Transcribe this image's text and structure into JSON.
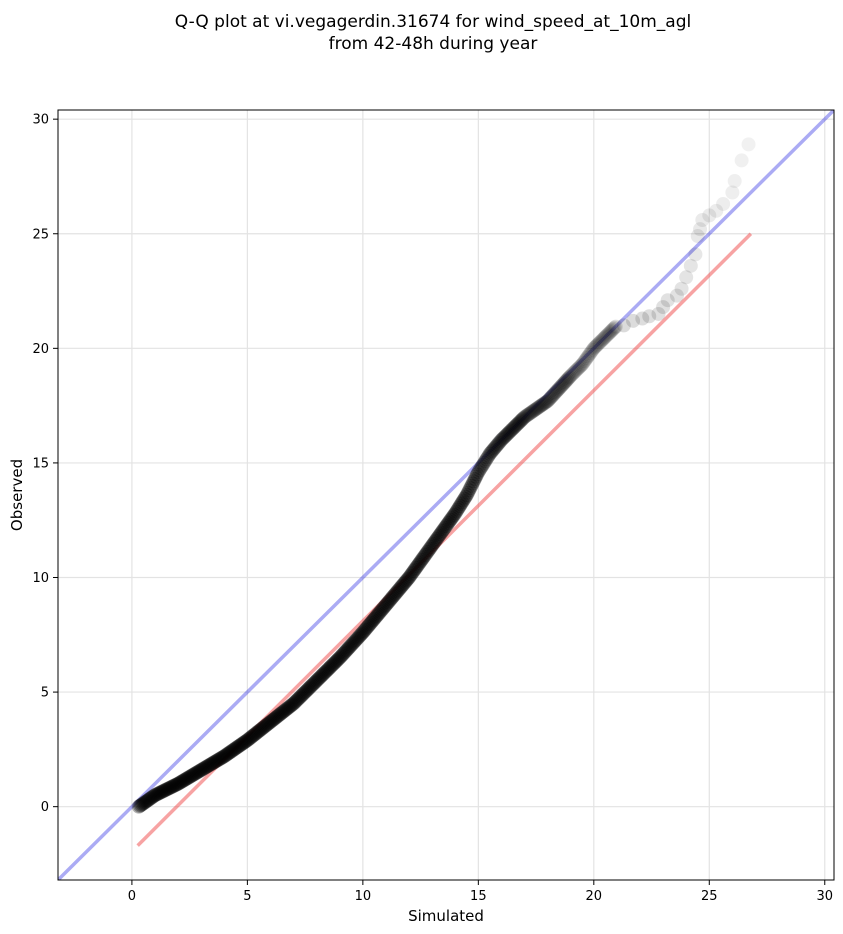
{
  "chart_data": {
    "type": "scatter",
    "title_lines": [
      "Q-Q plot at vi.vegagerdin.31674 for wind_speed_at_10m_agl",
      "from 42-48h during year"
    ],
    "xlabel": "Simulated",
    "ylabel": "Observed",
    "xlim": [
      -3.2,
      30.4
    ],
    "ylim": [
      -3.2,
      30.4
    ],
    "xticks": [
      "0",
      "5",
      "10",
      "15",
      "20",
      "25",
      "30"
    ],
    "yticks": [
      "0",
      "5",
      "10",
      "15",
      "20",
      "25",
      "30"
    ],
    "grid": true,
    "reference_line": {
      "color": "#0000dd",
      "from": [
        -3.2,
        -3.2
      ],
      "to": [
        30.4,
        30.4
      ]
    },
    "fit_line": {
      "color": "#ee3333",
      "from": [
        0.25,
        -1.7
      ],
      "to": [
        26.8,
        25.0
      ]
    },
    "point_color": "#000000",
    "curve": [
      [
        0.3,
        0.0
      ],
      [
        1,
        0.5
      ],
      [
        2,
        1.0
      ],
      [
        3,
        1.6
      ],
      [
        4,
        2.2
      ],
      [
        5,
        2.9
      ],
      [
        6,
        3.7
      ],
      [
        7,
        4.5
      ],
      [
        8,
        5.5
      ],
      [
        9,
        6.5
      ],
      [
        10,
        7.6
      ],
      [
        11,
        8.8
      ],
      [
        12,
        10.0
      ],
      [
        13,
        11.4
      ],
      [
        14,
        12.8
      ],
      [
        14.5,
        13.6
      ],
      [
        15,
        14.6
      ],
      [
        15.5,
        15.4
      ],
      [
        16,
        16.0
      ],
      [
        16.5,
        16.5
      ],
      [
        17,
        17.0
      ],
      [
        18,
        17.7
      ],
      [
        19,
        18.8
      ],
      [
        19.5,
        19.3
      ],
      [
        20,
        20.0
      ],
      [
        20.5,
        20.5
      ],
      [
        21,
        21.0
      ]
    ],
    "tail_points": [
      [
        21.3,
        21.0
      ],
      [
        21.7,
        21.2
      ],
      [
        22.1,
        21.3
      ],
      [
        22.4,
        21.4
      ],
      [
        22.8,
        21.5
      ],
      [
        23.0,
        21.8
      ],
      [
        23.2,
        22.1
      ],
      [
        23.6,
        22.3
      ],
      [
        23.8,
        22.6
      ],
      [
        24.0,
        23.1
      ],
      [
        24.2,
        23.6
      ],
      [
        24.4,
        24.1
      ],
      [
        24.5,
        24.9
      ],
      [
        24.6,
        25.2
      ],
      [
        24.7,
        25.6
      ],
      [
        25.0,
        25.8
      ],
      [
        25.3,
        26.0
      ],
      [
        25.6,
        26.3
      ],
      [
        26.0,
        26.8
      ],
      [
        26.1,
        27.3
      ],
      [
        26.4,
        28.2
      ],
      [
        26.7,
        28.9
      ]
    ]
  }
}
